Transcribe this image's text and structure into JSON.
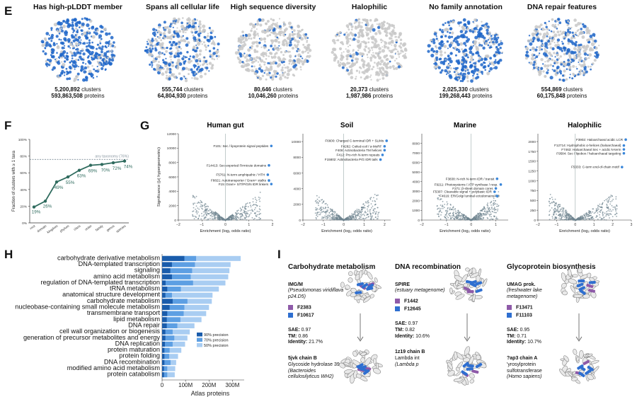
{
  "panels": {
    "E": "E",
    "F": "F",
    "G": "G",
    "H": "H",
    "I": "I"
  },
  "E": {
    "maps": [
      {
        "title": "Has high-pLDDT member",
        "clusters": "5,200,892",
        "proteins": "593,863,508",
        "fill": 0.8
      },
      {
        "title": "Spans all cellular life",
        "clusters": "555,744",
        "proteins": "64,804,930",
        "fill": 0.45
      },
      {
        "title": "High sequence diversity",
        "clusters": "80,646",
        "proteins": "10,046,260",
        "fill": 0.18
      },
      {
        "title": "Halophilic",
        "clusters": "20,373",
        "proteins": "1,987,986",
        "fill": 0.06
      },
      {
        "title": "No family annotation",
        "clusters": "2,025,330",
        "proteins": "199,268,443",
        "fill": 0.7
      },
      {
        "title": "DNA repair features",
        "clusters": "554,869",
        "proteins": "60,175,848",
        "fill": 0.45
      }
    ],
    "clusters_word": "clusters",
    "proteins_word": "proteins"
  },
  "chart_data": [
    {
      "type": "line",
      "ylabel": "Fraction of clusters with ≥ 1 taxa",
      "categories": [
        "root",
        "domain",
        "kingdom",
        "phylum",
        "class",
        "order",
        "family",
        "genus",
        "species"
      ],
      "values": [
        19,
        26,
        49,
        55,
        63,
        69,
        70,
        72,
        74
      ],
      "value_labels": [
        "19%",
        "26%",
        "49%",
        "55%",
        "63%",
        "69%",
        "70%",
        "72%",
        "74%"
      ],
      "reference": {
        "value": 76,
        "label": "any taxonomy (76%)"
      },
      "yticks": [
        "0%",
        "20%",
        "40%",
        "60%",
        "80%",
        "100%"
      ],
      "ylim": [
        0,
        100
      ],
      "color": "#2f6b5e"
    },
    {
      "type": "scatter",
      "xlabel": "Enrichment (log₂ odds ratio)",
      "ylabel": "Significance (|z| hypergeometric)",
      "subplots": [
        {
          "title": "Human gut",
          "xlim": [
            -2,
            2
          ],
          "ylim": [
            0,
            12000
          ],
          "xticks": [
            -2,
            -1,
            0,
            1,
            2
          ],
          "yticks": [
            0,
            2000,
            4000,
            6000,
            8000,
            10000,
            12000
          ],
          "highlights": [
            {
              "label": "F101: Sec / lipoprotein signal peptides",
              "x": 1.95,
              "y": 10300
            },
            {
              "label": "F14413: Sec-exported Firmicute domains",
              "x": 1.85,
              "y": 7600
            },
            {
              "label": "F5761: N-term amphipathic / HTH",
              "x": 1.8,
              "y": 6300
            },
            {
              "label": "F8821: Autotransporter / Gram+ stalks",
              "x": 1.85,
              "y": 5500
            },
            {
              "label": "F15: Gram+ S/T/P/G/N IDR linkers",
              "x": 1.95,
              "y": 5000
            }
          ]
        },
        {
          "title": "Soil",
          "xlim": [
            -2,
            2.3
          ],
          "ylim": [
            0,
            11000
          ],
          "xticks": [
            -2,
            -1,
            0,
            1,
            2
          ],
          "yticks": [
            0,
            2000,
            4000,
            6000,
            8000,
            10000
          ],
          "highlights": [
            {
              "label": "F6600: Charged C-terminal IDR + SLiMs",
              "x": 2.1,
              "y": 10100
            },
            {
              "label": "F4282: Coiled-coil / α-MoRF",
              "x": 2.0,
              "y": 9400
            },
            {
              "label": "F408: Actinobacteria TM helices",
              "x": 2.0,
              "y": 8900
            },
            {
              "label": "F412: Pro-rich N-term repeats",
              "x": 1.9,
              "y": 8300
            },
            {
              "label": "F15802: Actinobacteria P/G IDR tails",
              "x": 1.8,
              "y": 7700
            }
          ]
        },
        {
          "title": "Marine",
          "xlim": [
            -2,
            1.5
          ],
          "ylim": [
            0,
            9000
          ],
          "xticks": [
            -2,
            -1,
            0,
            1
          ],
          "yticks": [
            0,
            1000,
            2000,
            3000,
            4000,
            5000,
            6000,
            7000,
            8000
          ],
          "highlights": [
            {
              "label": "F3838: N-rich N-term IDR / transit",
              "x": 1.05,
              "y": 4300
            },
            {
              "label": "F9211: Photosystems / ATP synthase / resp.",
              "x": 1.2,
              "y": 3700
            },
            {
              "label": "F271: β-sheet domain cores",
              "x": 1.0,
              "y": 3300
            },
            {
              "label": "F5307: Cleavable signal + polybasic IDR",
              "x": 0.95,
              "y": 2950
            },
            {
              "label": "F4616: ER/Golgi luminal ectodomains",
              "x": 1.05,
              "y": 2500
            }
          ]
        },
        {
          "title": "Halophilic",
          "xlim": [
            -2,
            3
          ],
          "ylim": [
            0,
            2200
          ],
          "xticks": [
            -2,
            -1,
            0,
            1,
            2,
            3
          ],
          "yticks": [
            0,
            250,
            500,
            750,
            1000,
            1250,
            1500,
            1750,
            2000
          ],
          "highlights": [
            {
              "label": "F3902: Haloarchaeal acidic LCR",
              "x": 2.7,
              "y": 2050
            },
            {
              "label": "F12714: Hydrophobic α-helices (haloarchaeal)",
              "x": 2.6,
              "y": 1900
            },
            {
              "label": "F7463: Haloarchaeal Sec + acidic N-term",
              "x": 2.6,
              "y": 1800
            },
            {
              "label": "F9584: Sec / lipobox / haloarchaeal targeting",
              "x": 2.6,
              "y": 1700
            },
            {
              "label": "F5333: C-term end-of-chain motif",
              "x": 2.5,
              "y": 1350
            }
          ]
        }
      ]
    },
    {
      "type": "bar",
      "xlabel": "Atlas proteins",
      "xticks": [
        "0",
        "100M",
        "200M",
        "300M"
      ],
      "xlim": [
        0,
        350
      ],
      "categories": [
        "carbohydrate derivative metabolism",
        "DNA-templated transcription",
        "signaling",
        "amino acid metabolism",
        "regulation of DNA-templated transcription",
        "tRNA metabolism",
        "anatomical structure development",
        "carbohydrate metabolism",
        "nucleobase-containing small molecule metabolism",
        "transmembrane transport",
        "lipid metabolism",
        "DNA repair",
        "cell wall organization or biogenesis",
        "generation of precursor metabolites and energy",
        "DNA replication",
        "protein maturation",
        "protein folding",
        "DNA recombination",
        "modified amino acid metabolism",
        "protein catabolism"
      ],
      "series": [
        {
          "name": "50% precision",
          "values": [
            335,
            292,
            287,
            282,
            270,
            242,
            215,
            212,
            200,
            188,
            168,
            138,
            118,
            108,
            98,
            82,
            68,
            60,
            56,
            54
          ],
          "color": "#a9cdf2"
        },
        {
          "name": "70% precision",
          "values": [
            145,
            140,
            128,
            122,
            132,
            80,
            42,
            108,
            95,
            92,
            78,
            65,
            45,
            52,
            45,
            32,
            30,
            36,
            22,
            22
          ],
          "color": "#5d9fe3"
        },
        {
          "name": "90% precision",
          "values": [
            95,
            42,
            35,
            42,
            15,
            22,
            14,
            45,
            32,
            22,
            20,
            20,
            14,
            14,
            12,
            10,
            10,
            10,
            8,
            8
          ],
          "color": "#1a5cab"
        }
      ],
      "legend": [
        "90% precision",
        "70% precision",
        "50% precision"
      ]
    }
  ],
  "I": {
    "columns": [
      {
        "heading": "Carbohydrate metabolism",
        "source": "IMG/M",
        "source_desc": "(Pseudomonas viridiflava p24.D5)",
        "fam1": "F2383",
        "fam2": "F10617",
        "sae": "0.97",
        "tm": "0.86",
        "identity": "21.7%",
        "target": "5jvk chain B",
        "target_desc": "Glycoside hydrolase 39",
        "target_org": "(Bacteroides cellulosilyticus WH2)"
      },
      {
        "heading": "DNA recombination",
        "source": "SPIRE",
        "source_desc": "(estuary metagenome)",
        "fam1": "F1442",
        "fam2": "F12645",
        "sae": "0.97",
        "tm": "0.82",
        "identity": "10.6%",
        "target": "1z19 chain B",
        "target_desc": "Lambda int",
        "target_org": "(Lambda p"
      },
      {
        "heading": "Glycoprotein biosynthesis",
        "source": "UMAG prok.",
        "source_desc": "(freshwater lake metagenome)",
        "fam1": "F13471",
        "fam2": "F11103",
        "sae": "0.95",
        "tm": "0.71",
        "identity": "10.7%",
        "target": "?ap3 chain A",
        "target_desc": "'yrosylprotein sulfotransferase",
        "target_org": "(Homo sapiens)"
      }
    ],
    "labels": {
      "sae": "SAE:",
      "tm": "TM:",
      "identity": "Identity:"
    },
    "fam1_color": "#8e5aa8",
    "fam2_color": "#2f6fd0"
  }
}
